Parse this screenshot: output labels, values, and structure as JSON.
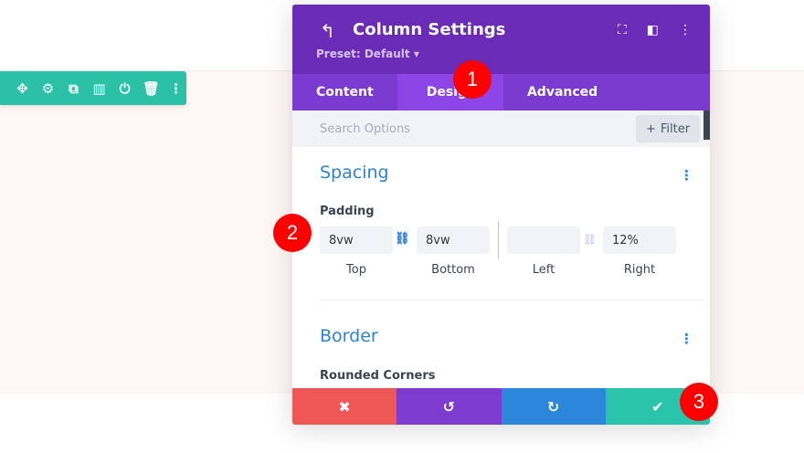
{
  "toolbar": {
    "icons": [
      "move-icon",
      "gear-icon",
      "duplicate-icon",
      "columns-icon",
      "power-icon",
      "trash-icon",
      "more-icon"
    ]
  },
  "panel": {
    "title": "Column Settings",
    "preset": "Preset: Default ▾",
    "tabs": [
      {
        "label": "Content"
      },
      {
        "label": "Design",
        "active": true
      },
      {
        "label": "Advanced"
      }
    ],
    "search_placeholder": "Search Options",
    "filter_label": "Filter",
    "spacing": {
      "title": "Spacing",
      "padding_label": "Padding",
      "fields": [
        {
          "label": "Top",
          "value": "8vw"
        },
        {
          "label": "Bottom",
          "value": "8vw"
        },
        {
          "label": "Left",
          "value": ""
        },
        {
          "label": "Right",
          "value": "12%"
        }
      ]
    },
    "border": {
      "title": "Border",
      "rounded_label": "Rounded Corners"
    }
  },
  "badges": [
    "1",
    "2",
    "3"
  ],
  "colors": {
    "header": "#6a2cb6",
    "tabs": "#7b3bd1",
    "active_tab": "#8d45e8",
    "toolbar": "#2bc1a7",
    "cancel": "#ef5656",
    "undo": "#7e3bd0",
    "redo": "#2b87da",
    "save": "#29c4a9",
    "accent": "#2e82d6"
  }
}
